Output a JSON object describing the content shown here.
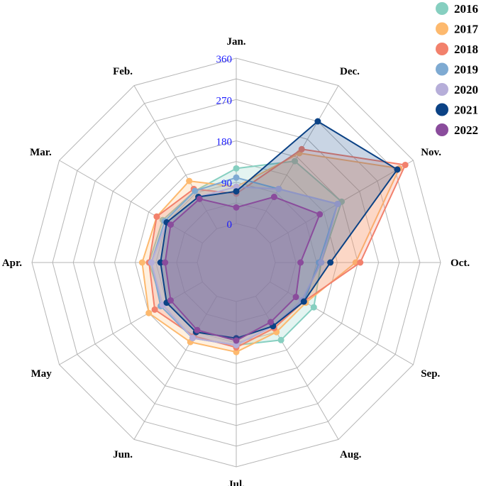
{
  "chart_data": {
    "type": "radar",
    "categories": [
      "Jan.",
      "Feb.",
      "Mar.",
      "Apr.",
      "May",
      "Jun.",
      "Jul.",
      "Aug.",
      "Sep.",
      "Oct.",
      "Nov.",
      "Dec."
    ],
    "tick_values": [
      0,
      90,
      180,
      270,
      360
    ],
    "tick_labels": [
      "0",
      "90",
      "180",
      "270",
      "360"
    ],
    "rlim": [
      0,
      360
    ],
    "legend_position": "top-right",
    "grid": true,
    "series": [
      {
        "name": "2016",
        "color": "#86cfc0",
        "values": [
          120,
          95,
          100,
          105,
          100,
          105,
          95,
          110,
          110,
          100,
          180,
          170
        ]
      },
      {
        "name": "2017",
        "color": "#fdb96e",
        "values": [
          80,
          120,
          115,
          120,
          135,
          115,
          110,
          90,
          90,
          175,
          325,
          190
        ]
      },
      {
        "name": "2018",
        "color": "#f2816c",
        "values": [
          65,
          100,
          115,
          105,
          120,
          100,
          100,
          80,
          85,
          185,
          340,
          200
        ]
      },
      {
        "name": "2019",
        "color": "#7eaad2",
        "values": [
          100,
          95,
          95,
          100,
          105,
          105,
          95,
          75,
          85,
          95,
          170,
          100
        ]
      },
      {
        "name": "2020",
        "color": "#b6aed9",
        "values": [
          80,
          80,
          90,
          100,
          100,
          105,
          95,
          75,
          80,
          100,
          170,
          100
        ]
      },
      {
        "name": "2021",
        "color": "#0b4285",
        "values": [
          70,
          80,
          90,
          80,
          90,
          90,
          80,
          75,
          85,
          120,
          320,
          270
        ]
      },
      {
        "name": "2022",
        "color": "#8a4c9c",
        "values": [
          35,
          75,
          80,
          70,
          80,
          85,
          85,
          65,
          65,
          55,
          125,
          80
        ]
      }
    ]
  }
}
